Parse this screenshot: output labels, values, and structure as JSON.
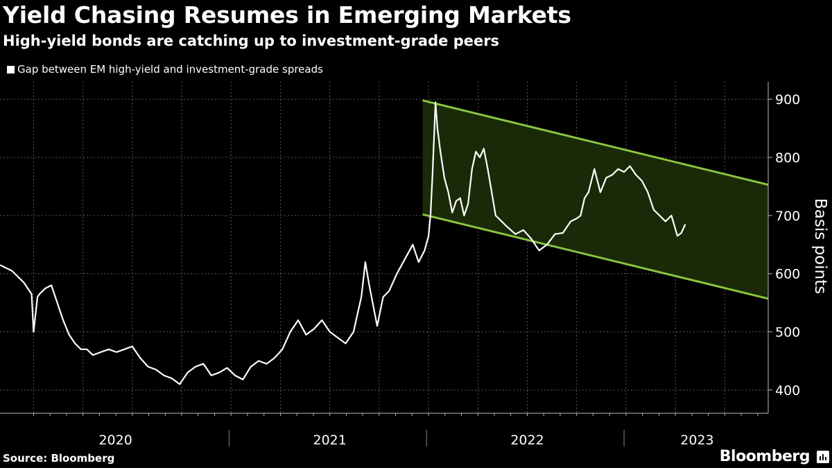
{
  "header": {
    "title": "Yield Chasing Resumes in Emerging Markets",
    "subtitle": "High-yield bonds are catching up to investment-grade peers"
  },
  "footer": {
    "source": "Source: Bloomberg",
    "brand": "Bloomberg"
  },
  "colors": {
    "background": "#000000",
    "line": "#ffffff",
    "channel_stroke": "#8bc43f",
    "channel_fill": "#1a2a08",
    "grid": "#5a5a5a"
  },
  "chart_data": {
    "type": "line",
    "title": "Yield Chasing Resumes in Emerging Markets",
    "subtitle": "High-yield bonds are catching up to investment-grade peers",
    "ylabel": "Basis points",
    "xlabel": "",
    "ylim": [
      360,
      930
    ],
    "xlim": [
      2019.83,
      2023.72
    ],
    "yticks": [
      400,
      500,
      600,
      700,
      800,
      900
    ],
    "x_tick_labels": [
      "2020",
      "2021",
      "2022",
      "2023"
    ],
    "x_tick_positions": [
      2020.0,
      2021.0,
      2022.0,
      2023.0
    ],
    "legend": {
      "position": "top-left",
      "entries": [
        "Gap between EM high-yield and investment-grade spreads"
      ]
    },
    "grid": true,
    "series": [
      {
        "name": "Gap between EM high-yield and investment-grade spreads",
        "x": [
          2019.83,
          2019.86,
          2019.89,
          2019.92,
          2019.95,
          2019.97,
          2019.99,
          2020.0,
          2020.02,
          2020.03,
          2020.06,
          2020.09,
          2020.12,
          2020.15,
          2020.18,
          2020.21,
          2020.24,
          2020.27,
          2020.3,
          2020.34,
          2020.38,
          2020.42,
          2020.46,
          2020.5,
          2020.54,
          2020.58,
          2020.62,
          2020.66,
          2020.7,
          2020.74,
          2020.78,
          2020.82,
          2020.86,
          2020.9,
          2020.94,
          2020.98,
          2021.02,
          2021.06,
          2021.1,
          2021.14,
          2021.18,
          2021.22,
          2021.26,
          2021.3,
          2021.34,
          2021.38,
          2021.42,
          2021.46,
          2021.5,
          2021.54,
          2021.58,
          2021.62,
          2021.64,
          2021.66,
          2021.68,
          2021.7,
          2021.72,
          2021.74,
          2021.77,
          2021.8,
          2021.84,
          2021.88,
          2021.92,
          2021.95,
          2021.98,
          2022.0,
          2022.01,
          2022.02,
          2022.035,
          2022.045,
          2022.06,
          2022.08,
          2022.1,
          2022.12,
          2022.14,
          2022.16,
          2022.18,
          2022.2,
          2022.22,
          2022.24,
          2022.26,
          2022.28,
          2022.3,
          2022.32,
          2022.34,
          2022.37,
          2022.4,
          2022.44,
          2022.48,
          2022.52,
          2022.56,
          2022.6,
          2022.64,
          2022.68,
          2022.72,
          2022.75,
          2022.77,
          2022.79,
          2022.81,
          2022.84,
          2022.87,
          2022.9,
          2022.93,
          2022.96,
          2022.99,
          2023.02,
          2023.05,
          2023.08,
          2023.11,
          2023.14,
          2023.17,
          2023.2,
          2023.23,
          2023.26,
          2023.28,
          2023.3
        ],
        "values": [
          615,
          610,
          605,
          595,
          585,
          575,
          565,
          500,
          560,
          565,
          575,
          580,
          550,
          520,
          495,
          480,
          470,
          470,
          460,
          465,
          470,
          465,
          470,
          475,
          455,
          440,
          435,
          425,
          420,
          410,
          430,
          440,
          445,
          425,
          430,
          438,
          425,
          418,
          440,
          450,
          445,
          455,
          470,
          500,
          520,
          495,
          505,
          520,
          500,
          490,
          480,
          500,
          530,
          560,
          620,
          580,
          545,
          510,
          560,
          570,
          600,
          625,
          650,
          620,
          640,
          665,
          700,
          770,
          895,
          850,
          810,
          765,
          740,
          705,
          725,
          730,
          700,
          720,
          780,
          810,
          800,
          815,
          780,
          740,
          700,
          690,
          680,
          668,
          675,
          660,
          640,
          650,
          668,
          670,
          690,
          695,
          700,
          730,
          740,
          780,
          740,
          765,
          770,
          780,
          775,
          785,
          770,
          760,
          740,
          710,
          700,
          690,
          700,
          665,
          670,
          685
        ]
      }
    ],
    "channel": {
      "upper": {
        "x": [
          2021.97,
          2023.72
        ],
        "y": [
          898,
          753
        ]
      },
      "lower": {
        "x": [
          2021.97,
          2023.72
        ],
        "y": [
          702,
          557
        ]
      }
    }
  }
}
